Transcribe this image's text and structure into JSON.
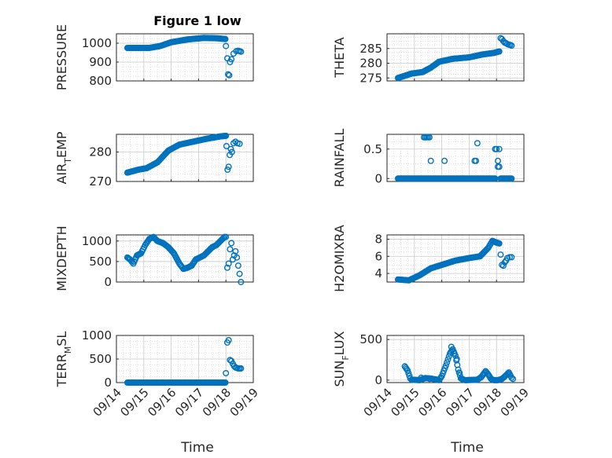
{
  "figure": {
    "title": "Figure 1 low",
    "xlabel": "Time",
    "marker_color": "#0072BD"
  },
  "chart_data": [
    {
      "type": "scatter",
      "ylabel": "PRESSURE",
      "xlim": [
        0,
        5
      ],
      "ylim": [
        800,
        1050
      ],
      "yticks": [
        800,
        900,
        1000
      ],
      "yticklabels": [
        "800",
        "900",
        "1000"
      ],
      "xticklabels": [],
      "anchors": [
        [
          0.4,
          975
        ],
        [
          1.2,
          975
        ],
        [
          1.6,
          985
        ],
        [
          2.0,
          1005
        ],
        [
          2.6,
          1020
        ],
        [
          3.2,
          1028
        ],
        [
          3.7,
          1026
        ],
        [
          3.98,
          1022
        ]
      ],
      "extra": [
        [
          4.0,
          985
        ],
        [
          4.05,
          920
        ],
        [
          4.08,
          835
        ],
        [
          4.12,
          830
        ],
        [
          4.15,
          900
        ],
        [
          4.2,
          915
        ],
        [
          4.28,
          945
        ],
        [
          4.38,
          958
        ],
        [
          4.45,
          960
        ],
        [
          4.5,
          958
        ],
        [
          4.55,
          955
        ]
      ]
    },
    {
      "type": "scatter",
      "ylabel": "THETA",
      "xlim": [
        0,
        5
      ],
      "ylim": [
        274,
        290
      ],
      "yticks": [
        275,
        280,
        285
      ],
      "yticklabels": [
        "275",
        "280",
        "285"
      ],
      "xticklabels": [],
      "anchors": [
        [
          0.4,
          275
        ],
        [
          0.9,
          276.5
        ],
        [
          1.3,
          277
        ],
        [
          1.6,
          278.5
        ],
        [
          1.9,
          280.5
        ],
        [
          2.4,
          281.5
        ],
        [
          3.0,
          282
        ],
        [
          3.5,
          283
        ],
        [
          3.9,
          283.5
        ],
        [
          4.1,
          284
        ]
      ],
      "extra": [
        [
          4.15,
          288.5
        ],
        [
          4.2,
          288.2
        ],
        [
          4.25,
          287.5
        ],
        [
          4.3,
          287
        ],
        [
          4.35,
          286.8
        ],
        [
          4.4,
          286.5
        ],
        [
          4.45,
          286.3
        ],
        [
          4.5,
          286.2
        ],
        [
          4.55,
          286
        ]
      ]
    },
    {
      "type": "scatter",
      "ylabel": "AIR_TEMP",
      "ylabel_main": "AIR",
      "ylabel_sub": "T",
      "ylabel_rest": "EMP",
      "xlim": [
        0,
        5
      ],
      "ylim": [
        270,
        286
      ],
      "yticks": [
        270,
        280
      ],
      "yticklabels": [
        "270",
        "280"
      ],
      "xticklabels": [],
      "anchors": [
        [
          0.4,
          273
        ],
        [
          0.8,
          274
        ],
        [
          1.1,
          274.5
        ],
        [
          1.5,
          276.5
        ],
        [
          1.9,
          280.5
        ],
        [
          2.3,
          282.5
        ],
        [
          2.8,
          283.5
        ],
        [
          3.3,
          284.5
        ],
        [
          3.8,
          285.3
        ],
        [
          4.0,
          285.5
        ]
      ],
      "extra": [
        [
          4.02,
          282
        ],
        [
          4.06,
          274
        ],
        [
          4.1,
          275
        ],
        [
          4.14,
          279
        ],
        [
          4.18,
          281
        ],
        [
          4.22,
          280
        ],
        [
          4.28,
          283
        ],
        [
          4.35,
          283.5
        ],
        [
          4.42,
          283
        ],
        [
          4.5,
          282.8
        ]
      ]
    },
    {
      "type": "scatter",
      "ylabel": "RAINFALL",
      "xlim": [
        0,
        5
      ],
      "ylim": [
        -0.05,
        0.75
      ],
      "yticks": [
        0,
        0.5
      ],
      "yticklabels": [
        "0",
        "0.5"
      ],
      "xticklabels": [],
      "anchors": [
        [
          0.4,
          0
        ],
        [
          3.95,
          0
        ]
      ],
      "anchors2": [
        [
          4.15,
          0
        ],
        [
          4.55,
          0
        ]
      ],
      "extra": [
        [
          1.35,
          0.7
        ],
        [
          1.4,
          0.7
        ],
        [
          1.45,
          0.7
        ],
        [
          1.5,
          0.7
        ],
        [
          1.55,
          0.7
        ],
        [
          1.6,
          0.3
        ],
        [
          2.1,
          0.3
        ],
        [
          3.2,
          0.3
        ],
        [
          3.25,
          0.3
        ],
        [
          3.3,
          0.6
        ],
        [
          3.95,
          0.5
        ],
        [
          4.0,
          0.5
        ],
        [
          4.1,
          0.5
        ],
        [
          4.05,
          0.3
        ],
        [
          4.05,
          0.2
        ],
        [
          4.1,
          0.2
        ]
      ]
    },
    {
      "type": "scatter",
      "ylabel": "MIXDEPTH",
      "xlim": [
        0,
        5
      ],
      "ylim": [
        0,
        1150
      ],
      "yticks": [
        0,
        500,
        1000
      ],
      "yticklabels": [
        "0",
        "500",
        "1000"
      ],
      "xticklabels": [],
      "anchors": [
        [
          0.4,
          600
        ],
        [
          0.5,
          550
        ],
        [
          0.62,
          450
        ],
        [
          0.75,
          650
        ],
        [
          0.9,
          700
        ],
        [
          1.05,
          900
        ],
        [
          1.2,
          1050
        ],
        [
          1.35,
          1100
        ],
        [
          1.5,
          1000
        ],
        [
          1.7,
          950
        ],
        [
          1.9,
          850
        ],
        [
          2.1,
          700
        ],
        [
          2.3,
          450
        ],
        [
          2.45,
          320
        ],
        [
          2.6,
          350
        ],
        [
          2.75,
          400
        ],
        [
          2.9,
          550
        ],
        [
          3.05,
          600
        ],
        [
          3.2,
          650
        ],
        [
          3.35,
          750
        ],
        [
          3.5,
          850
        ],
        [
          3.65,
          900
        ],
        [
          3.8,
          1000
        ],
        [
          3.95,
          1100
        ]
      ],
      "extra": [
        [
          4.0,
          1100
        ],
        [
          4.05,
          350
        ],
        [
          4.1,
          450
        ],
        [
          4.15,
          800
        ],
        [
          4.2,
          950
        ],
        [
          4.25,
          550
        ],
        [
          4.3,
          650
        ],
        [
          4.35,
          750
        ],
        [
          4.4,
          600
        ],
        [
          4.45,
          400
        ],
        [
          4.5,
          200
        ],
        [
          4.55,
          0
        ]
      ]
    },
    {
      "type": "scatter",
      "ylabel": "H2OMIXRA",
      "xlim": [
        0,
        5
      ],
      "ylim": [
        3,
        8.5
      ],
      "yticks": [
        4,
        6,
        8
      ],
      "yticklabels": [
        "4",
        "6",
        "8"
      ],
      "xticklabels": [],
      "anchors": [
        [
          0.4,
          3.3
        ],
        [
          0.8,
          3.2
        ],
        [
          1.2,
          3.8
        ],
        [
          1.6,
          4.6
        ],
        [
          2.0,
          5.0
        ],
        [
          2.5,
          5.5
        ],
        [
          3.0,
          5.8
        ],
        [
          3.4,
          6.0
        ],
        [
          3.7,
          7.0
        ],
        [
          3.85,
          7.8
        ],
        [
          4.0,
          7.6
        ],
        [
          4.1,
          7.5
        ]
      ],
      "extra": [
        [
          4.15,
          6.2
        ],
        [
          4.2,
          5.0
        ],
        [
          4.25,
          4.9
        ],
        [
          4.3,
          5.3
        ],
        [
          4.35,
          5.5
        ],
        [
          4.4,
          5.8
        ],
        [
          4.48,
          5.9
        ],
        [
          4.55,
          5.9
        ]
      ]
    },
    {
      "type": "scatter",
      "ylabel": "TERR_MSL",
      "ylabel_main": "TERR",
      "ylabel_sub": "M",
      "ylabel_rest": "SL",
      "xlim": [
        0,
        5
      ],
      "ylim": [
        0,
        1000
      ],
      "yticks": [
        0,
        500,
        1000
      ],
      "yticklabels": [
        "0",
        "500",
        "1000"
      ],
      "xticklabels": [
        "09/14",
        "09/15",
        "09/16",
        "09/17",
        "09/18",
        "09/19"
      ],
      "anchors": [
        [
          0.4,
          0
        ],
        [
          3.98,
          0
        ]
      ],
      "extra": [
        [
          4.0,
          200
        ],
        [
          4.05,
          850
        ],
        [
          4.1,
          900
        ],
        [
          4.15,
          480
        ],
        [
          4.2,
          460
        ],
        [
          4.25,
          400
        ],
        [
          4.3,
          350
        ],
        [
          4.35,
          320
        ],
        [
          4.4,
          310
        ],
        [
          4.45,
          300
        ],
        [
          4.5,
          300
        ],
        [
          4.55,
          300
        ]
      ]
    },
    {
      "type": "scatter",
      "ylabel": "SUN_FLUX",
      "ylabel_main": "SUN",
      "ylabel_sub": "F",
      "ylabel_rest": "LUX",
      "xlim": [
        0,
        5
      ],
      "ylim": [
        -30,
        550
      ],
      "yticks": [
        0,
        500
      ],
      "yticklabels": [
        "0",
        "500"
      ],
      "xticklabels": [
        "09/14",
        "09/15",
        "09/16",
        "09/17",
        "09/18",
        "09/19"
      ],
      "anchors": [
        [
          0.65,
          170
        ],
        [
          0.75,
          120
        ],
        [
          0.85,
          20
        ],
        [
          0.9,
          5
        ],
        [
          1.2,
          0
        ],
        [
          1.4,
          25
        ],
        [
          1.6,
          20
        ],
        [
          1.75,
          10
        ],
        [
          1.85,
          5
        ],
        [
          1.9,
          0
        ],
        [
          2.0,
          50
        ],
        [
          2.15,
          180
        ],
        [
          2.3,
          330
        ],
        [
          2.4,
          380
        ],
        [
          2.5,
          300
        ],
        [
          2.6,
          130
        ],
        [
          2.7,
          20
        ],
        [
          2.85,
          0
        ],
        [
          3.3,
          5
        ],
        [
          3.45,
          40
        ],
        [
          3.6,
          110
        ],
        [
          3.7,
          70
        ],
        [
          3.8,
          15
        ],
        [
          3.9,
          0
        ],
        [
          4.05,
          0
        ],
        [
          4.2,
          15
        ],
        [
          4.35,
          60
        ],
        [
          4.45,
          95
        ],
        [
          4.55,
          30
        ],
        [
          4.6,
          15
        ]
      ],
      "extra": [
        [
          2.35,
          410
        ],
        [
          2.45,
          330
        ],
        [
          2.55,
          260
        ],
        [
          2.65,
          90
        ],
        [
          1.25,
          30
        ],
        [
          1.55,
          15
        ]
      ]
    }
  ]
}
